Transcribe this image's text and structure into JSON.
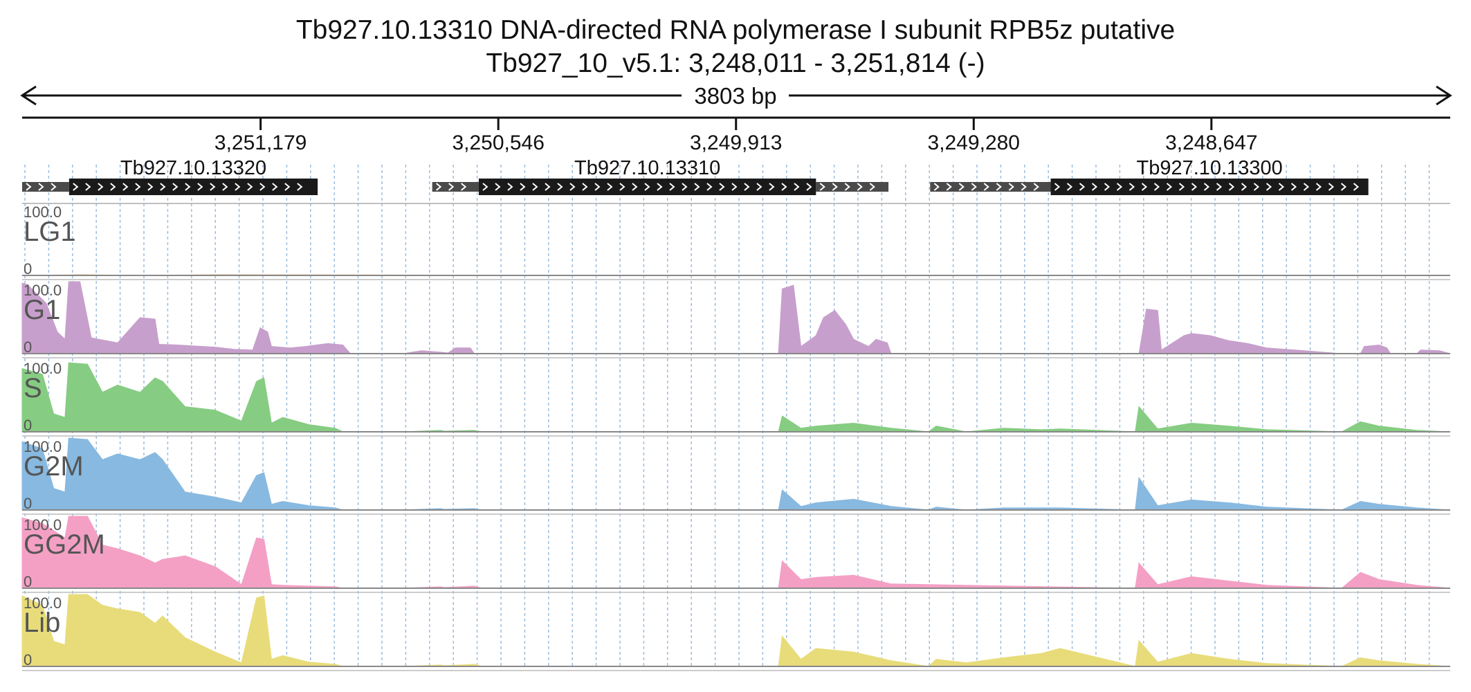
{
  "header": {
    "title": "Tb927.10.13310  DNA-directed RNA polymerase I subunit RPB5z  putative",
    "coords": "Tb927_10_v5.1: 3,248,011 - 3,251,814 (-)"
  },
  "chart_data": {
    "type": "area",
    "region": {
      "chrom": "Tb927_10_v5.1",
      "start": 3248011,
      "end": 3251814,
      "strand": "-"
    },
    "span_label": "3803 bp",
    "ticks": [
      {
        "pos": 3251179,
        "label": "3,251,179"
      },
      {
        "pos": 3250546,
        "label": "3,250,546"
      },
      {
        "pos": 3249913,
        "label": "3,249,913"
      },
      {
        "pos": 3249280,
        "label": "3,249,280"
      },
      {
        "pos": 3248647,
        "label": "3,248,647"
      }
    ],
    "genes": [
      {
        "name": "Tb927.10.13320",
        "utr5": [
          3251814,
          3251689
        ],
        "cds": [
          3251689,
          3251027
        ],
        "utr3": null
      },
      {
        "name": "Tb927.10.13310",
        "utr5": [
          3250722,
          3250598
        ],
        "cds": [
          3250598,
          3249700
        ],
        "utr3": [
          3249700,
          3249507
        ]
      },
      {
        "name": "Tb927.10.13300",
        "utr5": [
          3249396,
          3249075
        ],
        "cds": [
          3249075,
          3248229
        ],
        "utr3": null
      }
    ],
    "tracks": [
      {
        "name": "LG1",
        "max": "100.0",
        "min": "0",
        "color": "#f0b070",
        "x": [
          3251814,
          3251650,
          3251500,
          3251300,
          3250000,
          3248011
        ],
        "y": [
          0,
          1,
          0,
          1,
          0,
          0
        ]
      },
      {
        "name": "G1",
        "max": "100.0",
        "min": "0",
        "color": "#c79fcc",
        "x": [
          3251814,
          3251800,
          3251750,
          3251720,
          3251700,
          3251690,
          3251660,
          3251630,
          3251610,
          3251590,
          3251560,
          3251500,
          3251460,
          3251450,
          3251400,
          3251300,
          3251250,
          3251200,
          3251180,
          3251160,
          3251150,
          3251100,
          3251060,
          3251000,
          3250960,
          3250940,
          3250900,
          3250800,
          3250750,
          3250700,
          3250680,
          3250660,
          3250620,
          3250610,
          3249800,
          3249790,
          3249760,
          3249740,
          3249700,
          3249680,
          3249650,
          3249620,
          3249600,
          3249560,
          3249540,
          3249510,
          3249500,
          3248840,
          3248820,
          3248790,
          3248780,
          3248750,
          3248720,
          3248700,
          3248650,
          3248600,
          3248550,
          3248500,
          3248400,
          3248300,
          3248250,
          3248240,
          3248200,
          3248180,
          3248170,
          3248100,
          3248090,
          3248040,
          3248011
        ],
        "y": [
          98,
          96,
          70,
          30,
          20,
          100,
          100,
          22,
          20,
          18,
          15,
          50,
          48,
          13,
          12,
          9,
          6,
          5,
          36,
          30,
          10,
          8,
          10,
          14,
          12,
          0,
          0,
          0,
          4,
          2,
          1,
          8,
          8,
          0,
          0,
          90,
          95,
          10,
          25,
          50,
          60,
          40,
          20,
          10,
          20,
          15,
          0,
          0,
          62,
          60,
          5,
          15,
          25,
          28,
          25,
          18,
          14,
          8,
          4,
          0,
          0,
          10,
          12,
          8,
          0,
          0,
          5,
          4,
          0
        ]
      },
      {
        "name": "S",
        "max": "100.0",
        "min": "0",
        "color": "#86cc82",
        "x": [
          3251814,
          3251760,
          3251730,
          3251700,
          3251690,
          3251640,
          3251600,
          3251560,
          3251500,
          3251460,
          3251440,
          3251380,
          3251300,
          3251230,
          3251190,
          3251170,
          3251150,
          3251120,
          3251050,
          3250980,
          3250960,
          3250800,
          3250700,
          3250690,
          3250610,
          3250590,
          3250000,
          3249800,
          3249790,
          3249740,
          3249700,
          3249600,
          3249500,
          3249400,
          3249380,
          3249300,
          3249200,
          3249100,
          3249050,
          3248850,
          3248840,
          3248790,
          3248700,
          3248600,
          3248500,
          3248300,
          3248250,
          3248200,
          3248100,
          3248011
        ],
        "y": [
          88,
          80,
          25,
          20,
          96,
          94,
          55,
          65,
          55,
          75,
          70,
          35,
          30,
          15,
          70,
          75,
          12,
          20,
          10,
          5,
          0,
          0,
          2,
          1,
          2,
          0,
          0,
          0,
          22,
          5,
          8,
          12,
          5,
          0,
          8,
          0,
          5,
          3,
          4,
          0,
          35,
          4,
          12,
          8,
          3,
          0,
          14,
          8,
          2,
          0
        ]
      },
      {
        "name": "G2M",
        "max": "100.0",
        "min": "0",
        "color": "#88b9e0",
        "x": [
          3251814,
          3251760,
          3251730,
          3251700,
          3251690,
          3251640,
          3251600,
          3251560,
          3251500,
          3251460,
          3251440,
          3251380,
          3251300,
          3251230,
          3251190,
          3251170,
          3251150,
          3251120,
          3251050,
          3250980,
          3250960,
          3250800,
          3250700,
          3250690,
          3250610,
          3250590,
          3250000,
          3249800,
          3249790,
          3249740,
          3249700,
          3249600,
          3249500,
          3249400,
          3249380,
          3249300,
          3249200,
          3249100,
          3249050,
          3248850,
          3248840,
          3248790,
          3248700,
          3248600,
          3248500,
          3248300,
          3248250,
          3248200,
          3248100,
          3248011
        ],
        "y": [
          95,
          85,
          30,
          25,
          100,
          98,
          70,
          78,
          70,
          80,
          70,
          25,
          18,
          10,
          48,
          52,
          8,
          12,
          6,
          3,
          0,
          0,
          2,
          1,
          2,
          0,
          0,
          0,
          28,
          5,
          10,
          15,
          5,
          0,
          4,
          0,
          3,
          3,
          3,
          0,
          45,
          6,
          14,
          10,
          4,
          0,
          12,
          8,
          3,
          0
        ]
      },
      {
        "name": "GG2M",
        "max": "100.0",
        "min": "0",
        "color": "#f4a0c5",
        "x": [
          3251814,
          3251760,
          3251730,
          3251700,
          3251690,
          3251640,
          3251600,
          3251560,
          3251500,
          3251460,
          3251440,
          3251380,
          3251300,
          3251230,
          3251190,
          3251170,
          3251150,
          3251120,
          3251050,
          3250980,
          3250960,
          3250800,
          3250700,
          3250690,
          3250610,
          3250590,
          3249800,
          3249790,
          3249740,
          3249700,
          3249600,
          3249500,
          3248850,
          3248840,
          3248790,
          3248700,
          3248600,
          3248500,
          3248300,
          3248250,
          3248200,
          3248100,
          3248011
        ],
        "y": [
          98,
          90,
          80,
          70,
          100,
          100,
          60,
          55,
          45,
          35,
          40,
          45,
          30,
          5,
          70,
          68,
          5,
          4,
          3,
          2,
          0,
          0,
          2,
          1,
          3,
          0,
          0,
          38,
          12,
          15,
          18,
          6,
          0,
          35,
          5,
          16,
          10,
          4,
          0,
          22,
          12,
          4,
          0
        ]
      },
      {
        "name": "Lib",
        "max": "100.0",
        "min": "0",
        "color": "#e8dc7a",
        "x": [
          3251814,
          3251760,
          3251730,
          3251700,
          3251690,
          3251640,
          3251600,
          3251560,
          3251500,
          3251460,
          3251440,
          3251380,
          3251300,
          3251230,
          3251190,
          3251170,
          3251150,
          3251120,
          3251050,
          3250980,
          3250960,
          3250800,
          3250700,
          3250690,
          3250610,
          3250590,
          3249800,
          3249790,
          3249740,
          3249700,
          3249600,
          3249500,
          3249400,
          3249380,
          3249300,
          3249200,
          3249100,
          3249050,
          3248850,
          3248840,
          3248790,
          3248700,
          3248600,
          3248500,
          3248300,
          3248250,
          3248200,
          3248100,
          3248011
        ],
        "y": [
          98,
          85,
          35,
          30,
          100,
          100,
          85,
          80,
          75,
          60,
          70,
          40,
          20,
          5,
          95,
          98,
          10,
          15,
          6,
          3,
          0,
          0,
          2,
          1,
          3,
          0,
          0,
          42,
          10,
          25,
          20,
          8,
          0,
          10,
          5,
          12,
          18,
          25,
          0,
          36,
          6,
          18,
          10,
          4,
          0,
          12,
          8,
          3,
          0
        ]
      }
    ]
  }
}
